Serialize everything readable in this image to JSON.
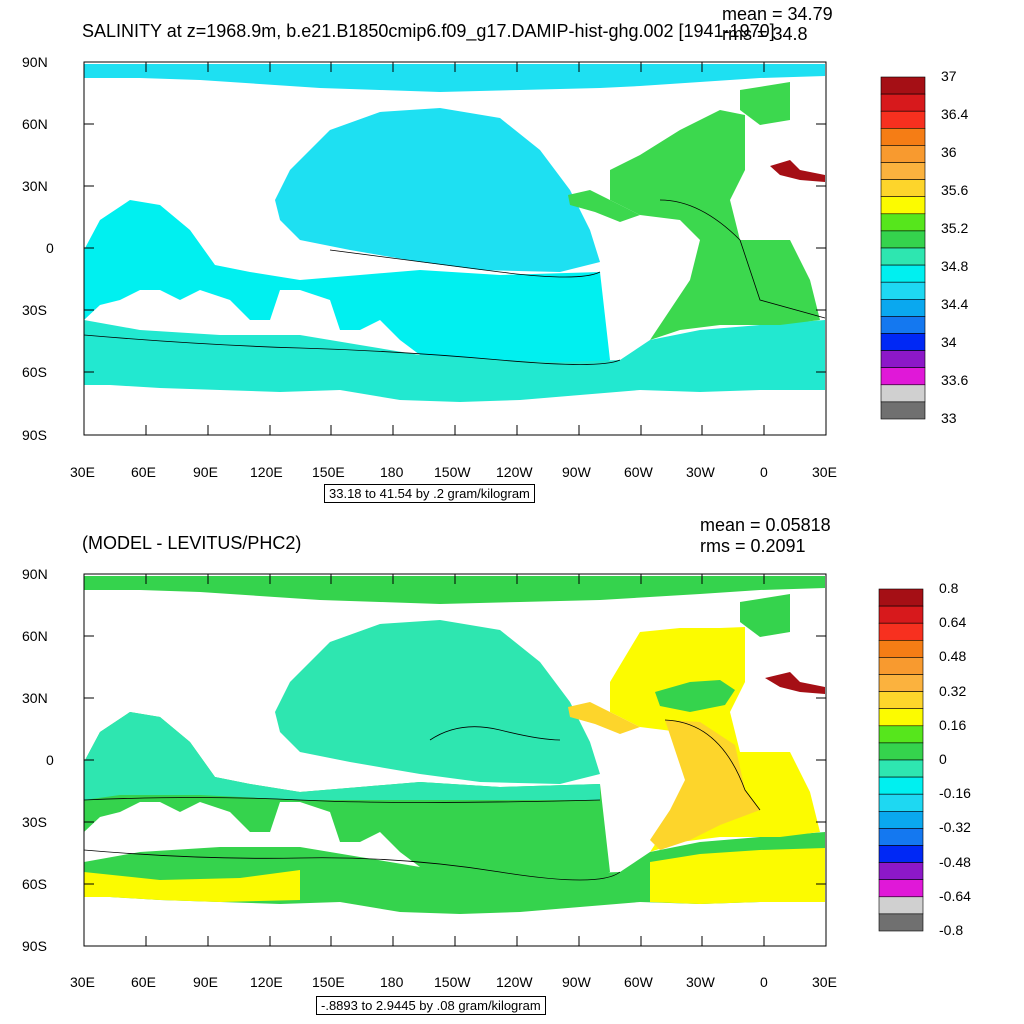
{
  "panel1": {
    "title": "SALINITY at z=1968.9m, b.e21.B1850cmip6.f09_g17.DAMIP-hist-ghg.002 [1941-1970]",
    "mean": "mean = 34.79",
    "rms": "rms = 34.8",
    "range": "33.18 to 41.54 by .2 gram/kilogram",
    "colorbar": {
      "colors": [
        "#a50f15",
        "#d7191c",
        "#f7301f",
        "#f57d15",
        "#f89a2f",
        "#fbb23e",
        "#fdd52b",
        "#fcfb00",
        "#56e61c",
        "#35d34d",
        "#2ee6b0",
        "#00f0f0",
        "#1ed8f2",
        "#0aa8ef",
        "#1478f0",
        "#0028f5",
        "#8c18c8",
        "#e018d8",
        "#d0d0d0",
        "#707070"
      ],
      "labels": [
        "37",
        "36.4",
        "36",
        "35.6",
        "35.2",
        "34.8",
        "34.4",
        "34",
        "33.6",
        "33"
      ]
    }
  },
  "panel2": {
    "title": "(MODEL - LEVITUS/PHC2)",
    "mean": "mean = 0.05818",
    "rms": "rms = 0.2091",
    "range": "-.8893 to 2.9445 by .08 gram/kilogram",
    "colorbar": {
      "colors": [
        "#a50f15",
        "#d7191c",
        "#f7301f",
        "#f57d15",
        "#f89a2f",
        "#fbb23e",
        "#fdd52b",
        "#fcfb00",
        "#56e61c",
        "#35d34d",
        "#2ee6b0",
        "#00f0f0",
        "#1ed8f2",
        "#0aa8ef",
        "#1478f0",
        "#0028f5",
        "#8c18c8",
        "#e018d8",
        "#d0d0d0",
        "#707070"
      ],
      "labels": [
        "0.8",
        "0.64",
        "0.48",
        "0.32",
        "0.16",
        "0",
        "-0.16",
        "-0.32",
        "-0.48",
        "-0.64",
        "-0.8"
      ]
    }
  },
  "axes": {
    "lon_labels": [
      "30E",
      "60E",
      "90E",
      "120E",
      "150E",
      "180",
      "150W",
      "120W",
      "90W",
      "60W",
      "30W",
      "0",
      "30E"
    ],
    "lat_labels": [
      "90N",
      "60N",
      "30N",
      "0",
      "30S",
      "60S",
      "90S"
    ]
  },
  "field_colors": {
    "pacific": "#1ee0f2",
    "southern": "#22e8d0",
    "atlantic": "#3cd84e",
    "indian": "#18e4e8",
    "medsea": "#a50f15",
    "anom_low": "#2ee6b0",
    "anom_mid": "#35d34d",
    "anom_yellow": "#fcfb00",
    "anom_orange": "#fdd52b"
  }
}
